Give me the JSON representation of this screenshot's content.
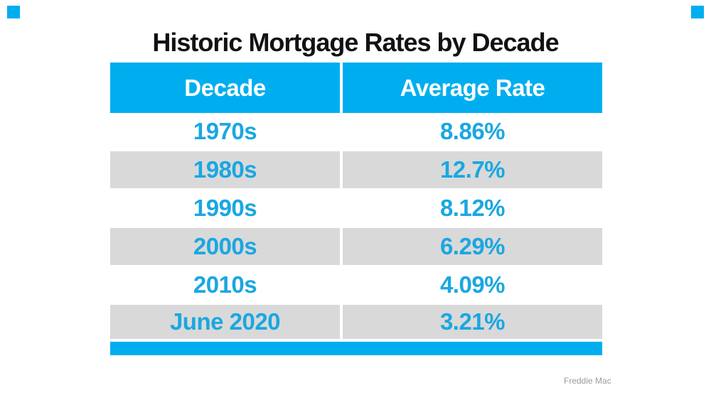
{
  "title": "Historic Mortgage Rates by Decade",
  "chart_data": {
    "type": "table",
    "title": "Historic Mortgage Rates by Decade",
    "columns": [
      "Decade",
      "Average Rate"
    ],
    "categories": [
      "1970s",
      "1980s",
      "1990s",
      "2000s",
      "2010s",
      "June 2020"
    ],
    "values": [
      8.86,
      12.7,
      8.12,
      6.29,
      4.09,
      3.21
    ],
    "values_display": [
      "8.86%",
      "12.7%",
      "8.12%",
      "6.29%",
      "4.09%",
      "3.21%"
    ],
    "source": "Freddie Mac",
    "layout_hints": {
      "banded_rows": true,
      "header_fill": "#00AEEF",
      "band_fill": "#D9D9D9",
      "bottom_accent_bar": true
    }
  },
  "table": {
    "columns": [
      "Decade",
      "Average Rate"
    ],
    "rows": [
      [
        "1970s",
        "8.86%"
      ],
      [
        "1980s",
        "12.7%"
      ],
      [
        "1990s",
        "8.12%"
      ],
      [
        "2000s",
        "6.29%"
      ],
      [
        "2010s",
        "4.09%"
      ],
      [
        "June 2020",
        "3.21%"
      ]
    ]
  },
  "attribution": "Freddie Mac",
  "colors": {
    "accent_blue": "#00AEEF",
    "row_text_blue": "#1AA7E2",
    "band_gray": "#D9D9D9",
    "header_text": "#FFFFFF",
    "title_text": "#121212",
    "attribution_text": "#9A9A9A"
  }
}
